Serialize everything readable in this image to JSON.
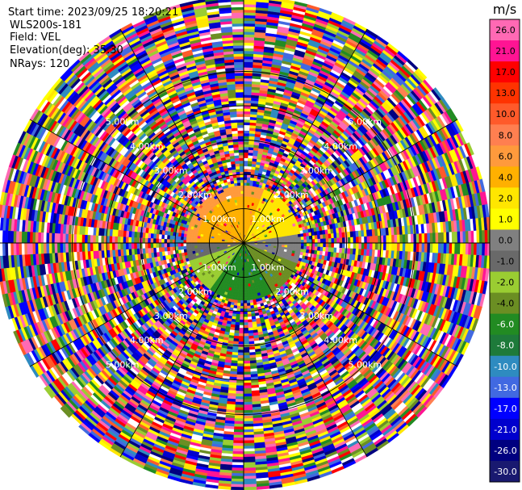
{
  "header": {
    "start_time": "Start time: 2023/09/25 18:20:21",
    "instrument": "WLS200s-181",
    "field": "Field: VEL",
    "elevation": "Elevation(deg): 35.30",
    "nrays": "NRays: 120"
  },
  "chart_data": {
    "type": "heatmap",
    "subtype": "polar-ppi",
    "field": "VEL",
    "units": "m/s",
    "range_rings": [
      {
        "range_km": 1.0,
        "labels": [
          "1.00km",
          "1.00km",
          "1.00km",
          "1.00km"
        ]
      },
      {
        "range_km": 2.0,
        "labels": [
          "2.00km",
          "2.00km",
          "2.00km",
          "2.00km"
        ]
      },
      {
        "range_km": 3.0,
        "labels": [
          "3.00km",
          "3.00km",
          "3.00km",
          "3.00km"
        ]
      },
      {
        "range_km": 4.0,
        "labels": [
          "4.00km",
          "4.00km",
          "4.00km",
          "4.00km"
        ]
      },
      {
        "range_km": 5.0,
        "labels": [
          "5.00km",
          "5.00km",
          "5.00km",
          "5.00km"
        ]
      }
    ],
    "max_range_km": 7.2,
    "n_rays": 120,
    "colorbar": {
      "unit_label": "m/s",
      "ticks": [
        "26.0",
        "21.0",
        "17.0",
        "13.0",
        "10.0",
        "8.0",
        "6.0",
        "4.0",
        "2.0",
        "1.0",
        "0.0",
        "-1.0",
        "-2.0",
        "-4.0",
        "-6.0",
        "-8.0",
        "-10.0",
        "-13.0",
        "-17.0",
        "-21.0",
        "-26.0",
        "-30.0"
      ],
      "bins": [
        {
          "color": "#ff69b4"
        },
        {
          "color": "#ff1493"
        },
        {
          "color": "#ff0000"
        },
        {
          "color": "#ff3300"
        },
        {
          "color": "#ff5a2a"
        },
        {
          "color": "#ff7f50"
        },
        {
          "color": "#ff9a3c"
        },
        {
          "color": "#ffb000"
        },
        {
          "color": "#ffe600"
        },
        {
          "color": "#ffff00"
        },
        {
          "color": "#808080"
        },
        {
          "color": "#696969"
        },
        {
          "color": "#9acd32"
        },
        {
          "color": "#6b8e23"
        },
        {
          "color": "#228b22"
        },
        {
          "color": "#1e7a3a"
        },
        {
          "color": "#2e8bc0"
        },
        {
          "color": "#4169e1"
        },
        {
          "color": "#0000ff"
        },
        {
          "color": "#0000cd"
        },
        {
          "color": "#000080"
        },
        {
          "color": "#191970"
        }
      ]
    }
  }
}
